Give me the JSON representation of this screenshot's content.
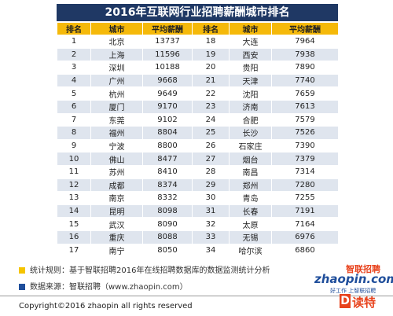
{
  "title": "2016年互联网行业招聘薪酬城市排名",
  "table": {
    "header": [
      "排名",
      "城市",
      "平均薪酬",
      "排名",
      "城市",
      "平均薪酬"
    ],
    "rows": [
      [
        1,
        "北京",
        13737,
        18,
        "大连",
        7964
      ],
      [
        2,
        "上海",
        11596,
        19,
        "西安",
        7938
      ],
      [
        3,
        "深圳",
        10188,
        20,
        "贵阳",
        7890
      ],
      [
        4,
        "广州",
        9668,
        21,
        "天津",
        7740
      ],
      [
        5,
        "杭州",
        9649,
        22,
        "沈阳",
        7659
      ],
      [
        6,
        "厦门",
        9170,
        23,
        "济南",
        7613
      ],
      [
        7,
        "东莞",
        9102,
        24,
        "合肥",
        7579
      ],
      [
        8,
        "福州",
        8804,
        25,
        "长沙",
        7526
      ],
      [
        9,
        "宁波",
        8800,
        26,
        "石家庄",
        7390
      ],
      [
        10,
        "佛山",
        8477,
        27,
        "烟台",
        7379
      ],
      [
        11,
        "苏州",
        8410,
        28,
        "南昌",
        7314
      ],
      [
        12,
        "成都",
        8374,
        29,
        "郑州",
        7280
      ],
      [
        13,
        "南京",
        8332,
        30,
        "青岛",
        7255
      ],
      [
        14,
        "昆明",
        8098,
        31,
        "长春",
        7191
      ],
      [
        15,
        "武汉",
        8090,
        32,
        "太原",
        7164
      ],
      [
        16,
        "重庆",
        8088,
        33,
        "无锡",
        6976
      ],
      [
        17,
        "南宁",
        8050,
        34,
        "哈尔滨",
        6860
      ]
    ]
  },
  "notes": [
    "统计规则：基于智联招聘2016年在线招聘数据库的数据监测统计分析",
    "数据来源：智联招聘（www.zhaopin.com）"
  ],
  "copyright": "Copyright©2016 zhaopin all rights reserved",
  "logo": {
    "brand": "智联招聘",
    "site": "zhaopin.com",
    "slogan": "好工作 上智联招聘",
    "mark": "D",
    "partner": "读特"
  }
}
